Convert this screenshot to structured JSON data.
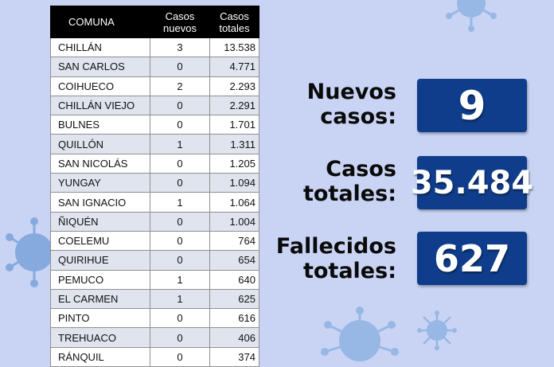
{
  "table": {
    "headers": {
      "comuna": "COMUNA",
      "casos_nuevos": "Casos\nnuevos",
      "casos_totales": "Casos\ntotales"
    },
    "rows": [
      {
        "comuna": "CHILLÁN",
        "nuevos": "3",
        "totales": "13.538"
      },
      {
        "comuna": "SAN CARLOS",
        "nuevos": "0",
        "totales": "4.771"
      },
      {
        "comuna": "COIHUECO",
        "nuevos": "2",
        "totales": "2.293"
      },
      {
        "comuna": "CHILLÁN VIEJO",
        "nuevos": "0",
        "totales": "2.291"
      },
      {
        "comuna": "BULNES",
        "nuevos": "0",
        "totales": "1.701"
      },
      {
        "comuna": "QUILLÓN",
        "nuevos": "1",
        "totales": "1.311"
      },
      {
        "comuna": "SAN NICOLÁS",
        "nuevos": "0",
        "totales": "1.205"
      },
      {
        "comuna": "YUNGAY",
        "nuevos": "0",
        "totales": "1.094"
      },
      {
        "comuna": "SAN IGNACIO",
        "nuevos": "1",
        "totales": "1.064"
      },
      {
        "comuna": "ÑIQUÉN",
        "nuevos": "0",
        "totales": "1.004"
      },
      {
        "comuna": "COELEMU",
        "nuevos": "0",
        "totales": "764"
      },
      {
        "comuna": "QUIRIHUE",
        "nuevos": "0",
        "totales": "654"
      },
      {
        "comuna": "PEMUCO",
        "nuevos": "1",
        "totales": "640"
      },
      {
        "comuna": "EL CARMEN",
        "nuevos": "1",
        "totales": "625"
      },
      {
        "comuna": "PINTO",
        "nuevos": "0",
        "totales": "616"
      },
      {
        "comuna": "TREHUACO",
        "nuevos": "0",
        "totales": "406"
      },
      {
        "comuna": "RÁNQUIL",
        "nuevos": "0",
        "totales": "374"
      }
    ]
  },
  "stats": {
    "nuevos_casos": {
      "label": "Nuevos\ncasos:",
      "value": "9"
    },
    "casos_totales": {
      "label": "Casos\ntotales:",
      "value": "35.484"
    },
    "fallecidos_totales": {
      "label": "Fallecidos\ntotales:",
      "value": "627"
    }
  },
  "decorations": {
    "icon": "coronavirus-icon",
    "virus_color": "#7fa6dc"
  }
}
